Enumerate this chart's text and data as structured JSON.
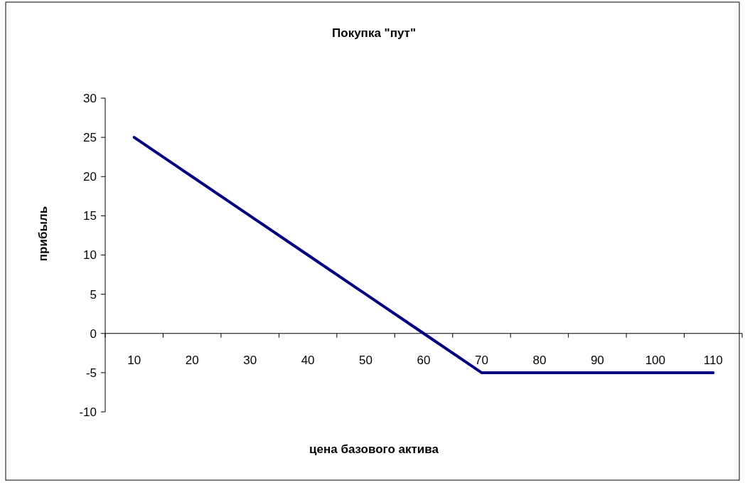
{
  "chart_data": {
    "type": "line",
    "title": "Покупка \"пут\"",
    "xlabel": "цена базового актива",
    "ylabel": "прибыль",
    "categories": [
      "10",
      "20",
      "30",
      "40",
      "50",
      "60",
      "70",
      "80",
      "90",
      "100",
      "110"
    ],
    "series": [
      {
        "color": "#000080",
        "values": [
          25,
          20,
          15,
          10,
          5,
          0,
          -5,
          -5,
          -5,
          -5,
          -5
        ]
      }
    ],
    "ylim": [
      -10,
      30
    ],
    "yticks": [
      -10,
      -5,
      0,
      5,
      10,
      15,
      20,
      25,
      30
    ],
    "grid": false,
    "marker": "none",
    "line_style": "solid"
  }
}
